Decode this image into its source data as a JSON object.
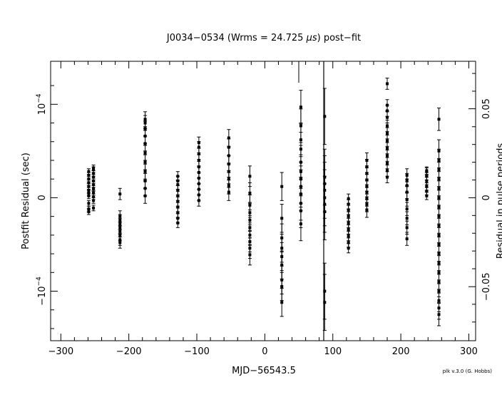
{
  "chart_data": {
    "type": "scatter",
    "title_prefix": "J0034−0534 (Wrms = 24.725 ",
    "title_unit": "μs",
    "title_suffix": ") post−fit",
    "xlabel": "MJD−56543.5",
    "ylabel_left": "Postfit Residual (sec)",
    "ylabel_right": "Residual in pulse periods",
    "credit": "plk v.3.0 (G. Hobbs)",
    "xlim": [
      -315,
      310
    ],
    "ylim": [
      -0.000153,
      0.000146
    ],
    "x_ticks": [
      {
        "v": -300,
        "label": "−300"
      },
      {
        "v": -200,
        "label": "−200"
      },
      {
        "v": -100,
        "label": "−100"
      },
      {
        "v": 0,
        "label": "0"
      },
      {
        "v": 100,
        "label": "100"
      },
      {
        "v": 200,
        "label": "200"
      },
      {
        "v": 300,
        "label": "300"
      }
    ],
    "y_ticks_left": [
      {
        "v": 0.0001,
        "base": "10",
        "exp": "−4"
      },
      {
        "v": 0,
        "base": "0",
        "exp": ""
      },
      {
        "v": -0.0001,
        "base": "−10",
        "exp": "−4"
      }
    ],
    "y_ticks_right": [
      {
        "v": 9.52e-05,
        "label": "0.05"
      },
      {
        "v": 0,
        "label": "0"
      },
      {
        "v": -9.52e-05,
        "label": "−0.05"
      }
    ],
    "groups": [
      {
        "x": -259,
        "values": [
          -1.5e-05,
          -1.2e-05,
          -6e-06,
          2e-06,
          5e-06,
          8e-06,
          1.2e-05,
          1.6e-05,
          2e-05,
          2.4e-05,
          2.8e-05
        ],
        "err": 3e-06
      },
      {
        "x": -252,
        "values": [
          -1.1e-05,
          -3e-06,
          1e-06,
          5e-06,
          1e-05,
          1.4e-05,
          1.8e-05,
          2.2e-05,
          2.6e-05,
          3e-05,
          3.2e-05
        ],
        "err": 3e-06
      },
      {
        "x": -213,
        "values": [
          -4.8e-05,
          -4.5e-05,
          -4e-05,
          -3.6e-05,
          -3.2e-05,
          -2.8e-05,
          -2.4e-05,
          -2e-05,
          4e-06
        ],
        "err": 6e-06
      },
      {
        "x": -176,
        "values": [
          2e-06,
          1e-05,
          1.8e-05,
          2.8e-05,
          3.8e-05,
          4.8e-05,
          5.8e-05,
          6.6e-05,
          7.4e-05,
          8e-05,
          8.4e-05
        ],
        "err": 8e-06
      },
      {
        "x": -128,
        "values": [
          -2.7e-05,
          -2.2e-05,
          -1.6e-05,
          -1e-05,
          -4e-06,
          2e-06,
          8e-06,
          1.4e-05,
          1.8e-05,
          2.3e-05
        ],
        "err": 5e-06
      },
      {
        "x": -97,
        "values": [
          -3e-06,
          3e-06,
          9e-06,
          1.5e-05,
          2.1e-05,
          2.7e-05,
          3.3e-05,
          4e-05,
          4.7e-05,
          5.4e-05,
          5.9e-05
        ],
        "err": 6e-06
      },
      {
        "x": -53,
        "values": [
          6e-06,
          1.3e-05,
          2e-05,
          2.8e-05,
          3.6e-05,
          4.5e-05,
          5.4e-05,
          6.4e-05
        ],
        "err": 9e-06
      },
      {
        "x": -22,
        "values": [
          -6.1e-05,
          -5.4e-05,
          -4.7e-05,
          -4e-05,
          -3.2e-05,
          -2.4e-05,
          -1.6e-05,
          -8e-06,
          5e-06,
          2.3e-05
        ],
        "err": 1.1e-05
      },
      {
        "x": 25,
        "values": [
          -0.000112,
          -9.5e-05,
          -8.8e-05,
          -7.2e-05,
          -6.3e-05,
          -5.4e-05,
          -4.3e-05,
          -2.2e-05,
          1.2e-05
        ],
        "err": 1.5e-05
      },
      {
        "x": 53,
        "values": [
          -2.8e-05,
          -1.4e-05,
          -6e-06,
          4e-06,
          1.2e-05,
          2e-05,
          2.8e-05,
          3.8e-05,
          5.2e-05,
          6.2e-05,
          7.7e-05,
          9.7e-05
        ],
        "err": 1.8e-05
      },
      {
        "x": 88,
        "values": [
          -0.000112,
          -0.0001,
          -1.5e-05,
          -7e-06,
          0.0,
          8e-06,
          1.5e-05,
          2.2e-05,
          8.7e-05
        ],
        "err": 3e-05
      },
      {
        "x": 123,
        "values": [
          -5.4e-05,
          -4.8e-05,
          -4.1e-05,
          -3.4e-05,
          -2.7e-05,
          -2e-05,
          -1.3e-05,
          -7e-06,
          -1e-06
        ],
        "err": 5e-06
      },
      {
        "x": 150,
        "values": [
          -1.3e-05,
          -7e-06,
          -1e-06,
          6e-06,
          1.2e-05,
          1.9e-05,
          2.6e-05,
          3.3e-05,
          4e-05
        ],
        "err": 8e-06
      },
      {
        "x": 180,
        "values": [
          2.2e-05,
          2.9e-05,
          3.7e-05,
          4.5e-05,
          5.3e-05,
          6.1e-05,
          6.9e-05,
          7.7e-05,
          8.6e-05,
          9.3e-05,
          9.9e-05,
          0.000122
        ],
        "err": 6e-06
      },
      {
        "x": 209,
        "values": [
          -4.4e-05,
          -3.2e-05,
          -2.2e-05,
          -1.2e-05,
          -2e-06,
          6e-06,
          1.3e-05,
          1.9e-05,
          2.4e-05
        ],
        "err": 7e-06
      },
      {
        "x": 238,
        "values": [
          2e-06,
          7e-06,
          1.2e-05,
          1.8e-05,
          2.3e-05,
          2.8e-05,
          2.9e-05
        ],
        "err": 4e-06
      },
      {
        "x": 256,
        "values": [
          -0.000125,
          -0.000118,
          -0.00011,
          -0.0001,
          -9e-05,
          -8e-05,
          -7e-05,
          -6e-05,
          -5e-05,
          -4e-05,
          -3e-05,
          -2e-05,
          -1e-05,
          0.0,
          1e-05,
          2e-05,
          3e-05,
          4e-05,
          5e-05,
          8.4e-05
        ],
        "err": 1.2e-05
      }
    ]
  }
}
